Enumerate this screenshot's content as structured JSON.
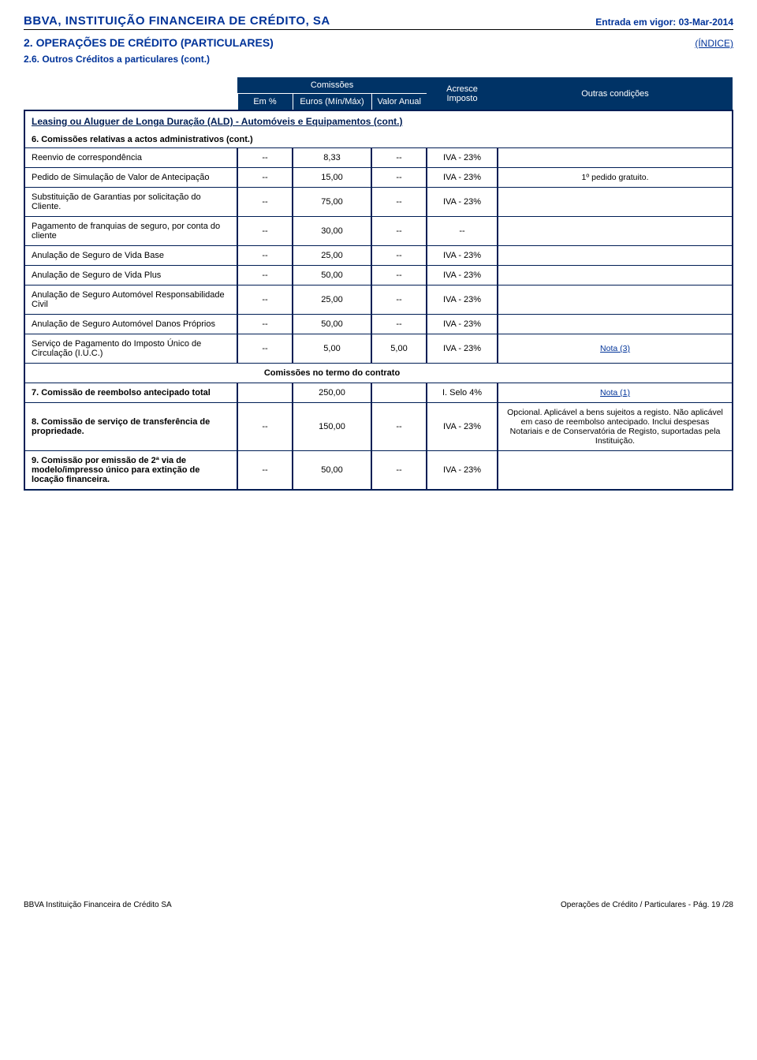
{
  "colors": {
    "heading_blue": "#003399",
    "panel_navy": "#003366",
    "border_navy": "#001e55",
    "link_blue": "#003399"
  },
  "fonts": {
    "heading_pt": 15,
    "section_pt": 14,
    "body_pt": 11
  },
  "header": {
    "company": "BBVA, INSTITUIÇÃO FINANCEIRA DE CRÉDITO, SA",
    "effective_date_label": "Entrada em vigor: 03-Mar-2014",
    "section": "2. OPERAÇÕES DE CRÉDITO (PARTICULARES)",
    "index_link": "(ÍNDICE)",
    "subtitle": "2.6. Outros Créditos a particulares (cont.)"
  },
  "table_header": {
    "comissoes": "Comissões",
    "em_pct": "Em %",
    "euros": "Euros (Mín/Máx)",
    "valor_anual": "Valor Anual",
    "acresce": "Acresce Imposto",
    "outras": "Outras condições"
  },
  "section_title": "Leasing ou Aluguer de Longa Duração (ALD)  - Automóveis e Equipamentos (cont.)",
  "group6": "6. Comissões relativas a actos administrativos (cont.)",
  "rows1": [
    {
      "desc": "Reenvio de correspondência",
      "pct": "--",
      "eur": "8,33",
      "val": "--",
      "tax": "IVA - 23%",
      "cond": ""
    },
    {
      "desc": "Pedido de Simulação de Valor de Antecipação",
      "pct": "--",
      "eur": "15,00",
      "val": "--",
      "tax": "IVA - 23%",
      "cond": "1º pedido gratuito."
    },
    {
      "desc": "Substituição de Garantias por solicitação do Cliente.",
      "pct": "--",
      "eur": "75,00",
      "val": "--",
      "tax": "IVA - 23%",
      "cond": ""
    },
    {
      "desc": "Pagamento de franquias de seguro, por conta do cliente",
      "pct": "--",
      "eur": "30,00",
      "val": "--",
      "tax": "--",
      "cond": ""
    },
    {
      "desc": "Anulação de Seguro de Vida Base",
      "pct": "--",
      "eur": "25,00",
      "val": "--",
      "tax": "IVA - 23%",
      "cond": ""
    },
    {
      "desc": "Anulação de Seguro de Vida Plus",
      "pct": "--",
      "eur": "50,00",
      "val": "--",
      "tax": "IVA - 23%",
      "cond": ""
    },
    {
      "desc": "Anulação de Seguro Automóvel Responsabilidade Civil",
      "pct": "--",
      "eur": "25,00",
      "val": "--",
      "tax": "IVA - 23%",
      "cond": ""
    },
    {
      "desc": "Anulação de Seguro Automóvel Danos Próprios",
      "pct": "--",
      "eur": "50,00",
      "val": "--",
      "tax": "IVA - 23%",
      "cond": ""
    },
    {
      "desc": "Serviço de Pagamento do Imposto Único de Circulação (I.U.C.)",
      "pct": "--",
      "eur": "5,00",
      "val": "5,00",
      "tax": "IVA - 23%",
      "cond": "Nota (3)",
      "cond_link": true
    }
  ],
  "mid_header": "Comissões no termo do contrato",
  "rows2": [
    {
      "desc": "7. Comissão de reembolso antecipado total",
      "bold": true,
      "pct": "",
      "eur": "250,00",
      "val": "",
      "tax": "I. Selo 4%",
      "cond": "Nota (1)",
      "cond_link": true
    },
    {
      "desc": "8. Comissão de serviço de transferência de propriedade.",
      "bold": true,
      "pct": "--",
      "eur": "150,00",
      "val": "--",
      "tax": "IVA - 23%",
      "cond": "Opcional. Aplicável a bens sujeitos a registo. Não aplicável em caso de reembolso antecipado. Inclui despesas Notariais e de Conservatória de Registo, suportadas pela Instituição."
    },
    {
      "desc": "9. Comissão por emissão de 2ª via de modelo/impresso único para extinção de locação financeira.",
      "bold": true,
      "pct": "--",
      "eur": "50,00",
      "val": "--",
      "tax": "IVA - 23%",
      "cond": ""
    }
  ],
  "footer": {
    "left": "BBVA Instituição Financeira de Crédito SA",
    "right": "Operações de Crédito / Particulares - Pág. 19 /28"
  }
}
